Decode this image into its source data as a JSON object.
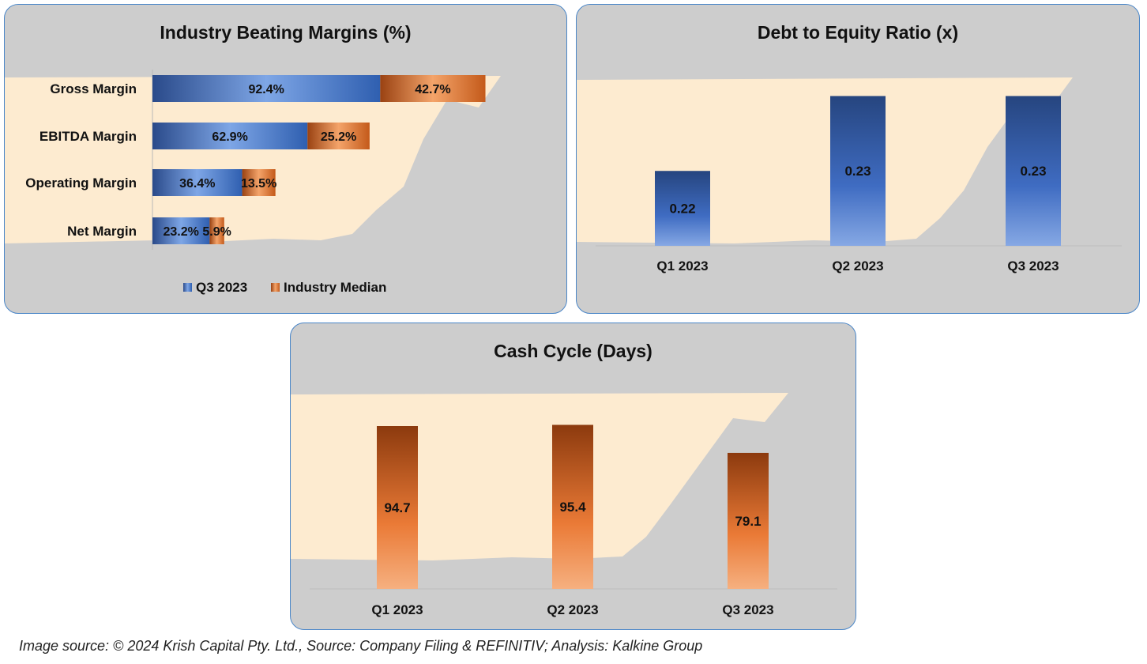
{
  "colors": {
    "blue_dark": "#2a4a8a",
    "blue_light": "#7ea6e6",
    "orange_dark": "#9a4212",
    "orange_light": "#f4a46a",
    "panel_bg": "#cdcdcd",
    "illustration_bg": "#fdebd0",
    "panel_border": "#4a86c8"
  },
  "chart_data": [
    {
      "type": "bar",
      "orientation": "horizontal",
      "stacked": true,
      "title": "Industry Beating Margins (%)",
      "categories": [
        "Gross Margin",
        "EBITDA Margin",
        "Operating Margin",
        "Net Margin"
      ],
      "series": [
        {
          "name": "Q3 2023",
          "values": [
            92.4,
            62.9,
            36.4,
            23.2
          ],
          "labels": [
            "92.4%",
            "62.9%",
            "36.4%",
            "23.2%"
          ]
        },
        {
          "name": "Industry Median",
          "values": [
            42.7,
            25.2,
            13.5,
            5.9
          ],
          "labels": [
            "42.7%",
            "25.2%",
            "13.5%",
            "5.9%"
          ]
        }
      ],
      "xlim": [
        0,
        140
      ],
      "legend": "bottom",
      "grid": false
    },
    {
      "type": "bar",
      "title": "Debt to Equity Ratio (x)",
      "categories": [
        "Q1 2023",
        "Q2 2023",
        "Q3 2023"
      ],
      "values": [
        0.22,
        0.23,
        0.23
      ],
      "labels": [
        "0.22",
        "0.23",
        "0.23"
      ],
      "ylim": [
        0.21,
        0.231
      ],
      "legend": "none",
      "grid": false
    },
    {
      "type": "bar",
      "title": "Cash Cycle (Days)",
      "categories": [
        "Q1 2023",
        "Q2 2023",
        "Q3 2023"
      ],
      "values": [
        94.7,
        95.4,
        79.1
      ],
      "labels": [
        "94.7",
        "95.4",
        "79.1"
      ],
      "ylim": [
        0,
        100
      ],
      "legend": "none",
      "grid": false
    }
  ],
  "footer": {
    "source_text": "Image source: © 2024 Krish Capital Pty. Ltd., Source: Company Filing & REFINITIV; Analysis: Kalkine Group"
  }
}
